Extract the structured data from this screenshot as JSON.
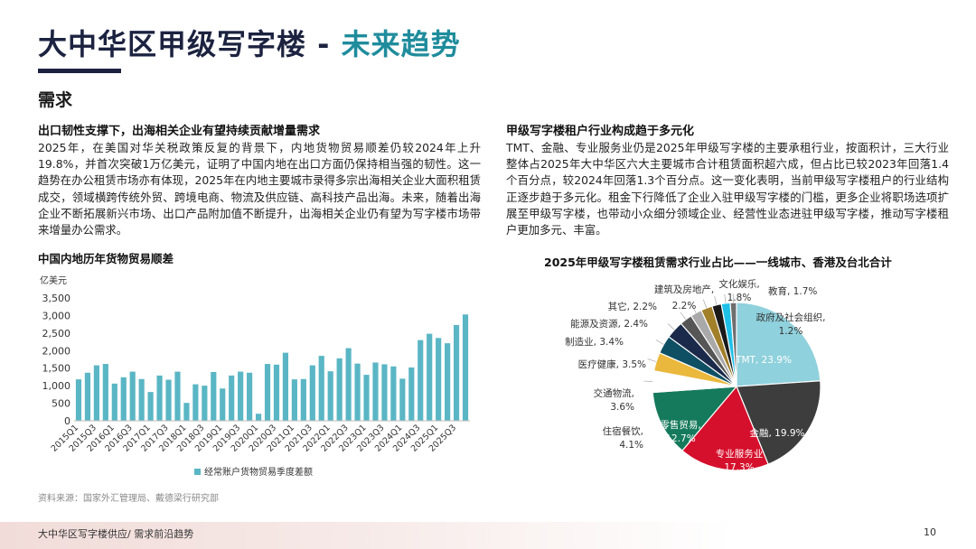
{
  "header": {
    "title_main": "大中华区甲级写字楼 - ",
    "title_accent": "未来趋势",
    "section": "需求"
  },
  "left": {
    "heading": "出口韧性支撑下，出海相关企业有望持续贡献增量需求",
    "paragraph": "2025年，在美国对华关税政策反复的背景下，内地货物贸易顺差仍较2024年上升19.8%，并首次突破1万亿美元，证明了中国内地在出口方面仍保持相当强的韧性。这一趋势在办公租赁市场亦有体现，2025年在内地主要城市录得多宗出海相关企业大面积租赁成交，领域横跨传统外贸、跨境电商、物流及供应链、高科技产品出海。未来，随着出海企业不断拓展新兴市场、出口产品附加值不断提升，出海相关企业仍有望为写字楼市场带来增量办公需求。"
  },
  "right": {
    "heading": "甲级写字楼租户行业构成趋于多元化",
    "paragraph": "TMT、金融、专业服务业仍是2025年甲级写字楼的主要承租行业，按面积计，三大行业整体占2025年大中华区六大主要城市合计租赁面积超六成，但占比已较2023年回落1.4个百分点，较2024年回落1.3个百分点。这一变化表明，当前甲级写字楼租户的行业结构正逐步趋于多元化。租金下行降低了企业入驻甲级写字楼的门槛，更多企业将职场选项扩展至甲级写字楼，也带动小众细分领域企业、经营性业态进驻甲级写字楼，推动写字楼租户更加多元、丰富。"
  },
  "chart_data": [
    {
      "type": "bar",
      "title": "中国内地历年货物贸易顺差",
      "ylabel": "亿美元",
      "ylim": [
        0,
        3500
      ],
      "yticks": [
        "0",
        "500",
        "1,000",
        "1,500",
        "2,000",
        "2,500",
        "3,000",
        "3,500"
      ],
      "xtick_labels": [
        "2015Q1",
        "2015Q3",
        "2016Q1",
        "2016Q3",
        "2017Q1",
        "2017Q3",
        "2018Q1",
        "2018Q3",
        "2019Q1",
        "2019Q3",
        "2020Q1",
        "2020Q3",
        "2021Q1",
        "2021Q3",
        "2022Q1",
        "2022Q3",
        "2023Q1",
        "2023Q3",
        "2024Q1",
        "2024Q3",
        "2025Q1",
        "2025Q3"
      ],
      "categories": [
        "2015Q1",
        "2015Q2",
        "2015Q3",
        "2015Q4",
        "2016Q1",
        "2016Q2",
        "2016Q3",
        "2016Q4",
        "2017Q1",
        "2017Q2",
        "2017Q3",
        "2017Q4",
        "2018Q1",
        "2018Q2",
        "2018Q3",
        "2018Q4",
        "2019Q1",
        "2019Q2",
        "2019Q3",
        "2019Q4",
        "2020Q1",
        "2020Q2",
        "2020Q3",
        "2020Q4",
        "2021Q1",
        "2021Q2",
        "2021Q3",
        "2021Q4",
        "2022Q1",
        "2022Q2",
        "2022Q3",
        "2022Q4",
        "2023Q1",
        "2023Q2",
        "2023Q3",
        "2023Q4",
        "2024Q1",
        "2024Q2",
        "2024Q3",
        "2024Q4",
        "2025Q1",
        "2025Q2",
        "2025Q3",
        "2025Q4"
      ],
      "values": [
        1180,
        1370,
        1580,
        1620,
        1060,
        1240,
        1400,
        1190,
        820,
        1290,
        1170,
        1400,
        510,
        1040,
        1000,
        1390,
        920,
        1290,
        1400,
        1370,
        200,
        1620,
        1600,
        1940,
        1180,
        1190,
        1580,
        1850,
        1410,
        1780,
        2070,
        1630,
        1310,
        1660,
        1610,
        1550,
        1200,
        1520,
        2300,
        2480,
        2360,
        2210,
        2730,
        3030
      ],
      "legend": "经常账户货物贸易季度差额",
      "color": "#5ab6c4"
    },
    {
      "type": "pie",
      "title": "2025年甲级写字楼租赁需求行业占比——一线城市、香港及台北合计",
      "slices": [
        {
          "label": "TMT, 23.9%",
          "value": 23.9,
          "color": "#8fd1dc"
        },
        {
          "label": "金融, 19.9%",
          "value": 19.9,
          "color": "#3d3d3d"
        },
        {
          "label": "专业服务业 17.3%",
          "value": 17.3,
          "color": "#d5102c"
        },
        {
          "label": "零售贸易, 12.7%",
          "value": 12.7,
          "color": "#157a5c"
        },
        {
          "label": "住宿餐饮, 4.1%",
          "value": 4.1,
          "color": "#ffffff"
        },
        {
          "label": "交通物流, 3.6%",
          "value": 3.6,
          "color": "#eab83c"
        },
        {
          "label": "医疗健康, 3.5%",
          "value": 3.5,
          "color": "#0e4f63"
        },
        {
          "label": "制造业, 3.4%",
          "value": 3.4,
          "color": "#1b2a4a"
        },
        {
          "label": "能源及资源, 2.4%",
          "value": 2.4,
          "color": "#565656"
        },
        {
          "label": "其它, 2.2%",
          "value": 2.2,
          "color": "#a9a9a9"
        },
        {
          "label": "建筑及房地产, 2.2%",
          "value": 2.2,
          "color": "#a2802a"
        },
        {
          "label": "文化娱乐, 1.8%",
          "value": 1.8,
          "color": "#1a1a1a"
        },
        {
          "label": "教育, 1.7%",
          "value": 1.7,
          "color": "#1fc0e8"
        },
        {
          "label": "政府及社会组织, 1.2%",
          "value": 1.2,
          "color": "#6e6e6e"
        }
      ]
    }
  ],
  "source": "资料来源：国家外汇管理局、戴德梁行研究部",
  "footer": {
    "text": "大中华区写字楼供应/ 需求前沿趋势",
    "page": "10"
  }
}
